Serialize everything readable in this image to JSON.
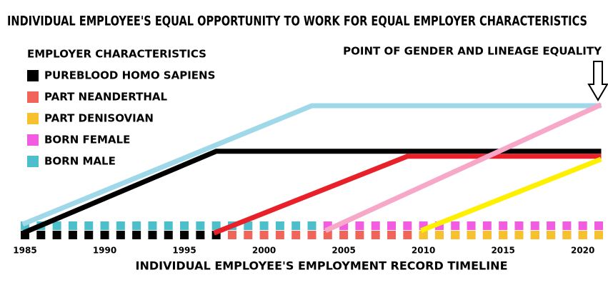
{
  "chart_data": {
    "type": "line",
    "title": "INDIVIDUAL EMPLOYEE'S EQUAL OPPORTUNITY TO WORK FOR EQUAL EMPLOYER CHARACTERISTICS",
    "legend_title": "EMPLOYER CHARACTERISTICS",
    "annotation": "POINT OF GENDER AND LINEAGE EQUALITY",
    "x_label": "INDIVIDUAL EMPLOYEE'S EMPLOYMENT RECORD TIMELINE",
    "xlim": [
      1985,
      2021
    ],
    "xticks": [
      1985,
      1990,
      1995,
      2000,
      2005,
      2010,
      2015,
      2020
    ],
    "ylim": [
      0,
      100
    ],
    "series": [
      {
        "name": "PUREBLOOD HOMO SAPIENS",
        "color": "#000000",
        "line_color": "#000000",
        "x": [
          1985,
          1997,
          2021
        ],
        "values": [
          0,
          64,
          64
        ],
        "squares": [
          1985,
          1997
        ]
      },
      {
        "name": "PART NEANDERTHAL",
        "color": "#f0645a",
        "line_color": "#e8202a",
        "x": [
          1997,
          2009,
          2021
        ],
        "values": [
          0,
          60,
          60
        ],
        "squares": [
          1998,
          2021
        ]
      },
      {
        "name": "PART DENISOVIAN",
        "color": "#f7c12d",
        "line_color": "#fff000",
        "x": [
          2010,
          2021
        ],
        "values": [
          2,
          57
        ],
        "squares": [
          2010,
          2021
        ]
      },
      {
        "name": "BORN FEMALE",
        "color": "#f25ce0",
        "line_color": "#f7a8c8",
        "x": [
          2004,
          2021
        ],
        "values": [
          2,
          100
        ],
        "squares": [
          2004,
          2021
        ]
      },
      {
        "name": "BORN MALE",
        "color": "#4dbfcc",
        "line_color": "#9fd8e8",
        "x": [
          1985,
          2003,
          2021
        ],
        "values": [
          7,
          100,
          100
        ],
        "squares": [
          1985,
          2003
        ]
      }
    ]
  }
}
